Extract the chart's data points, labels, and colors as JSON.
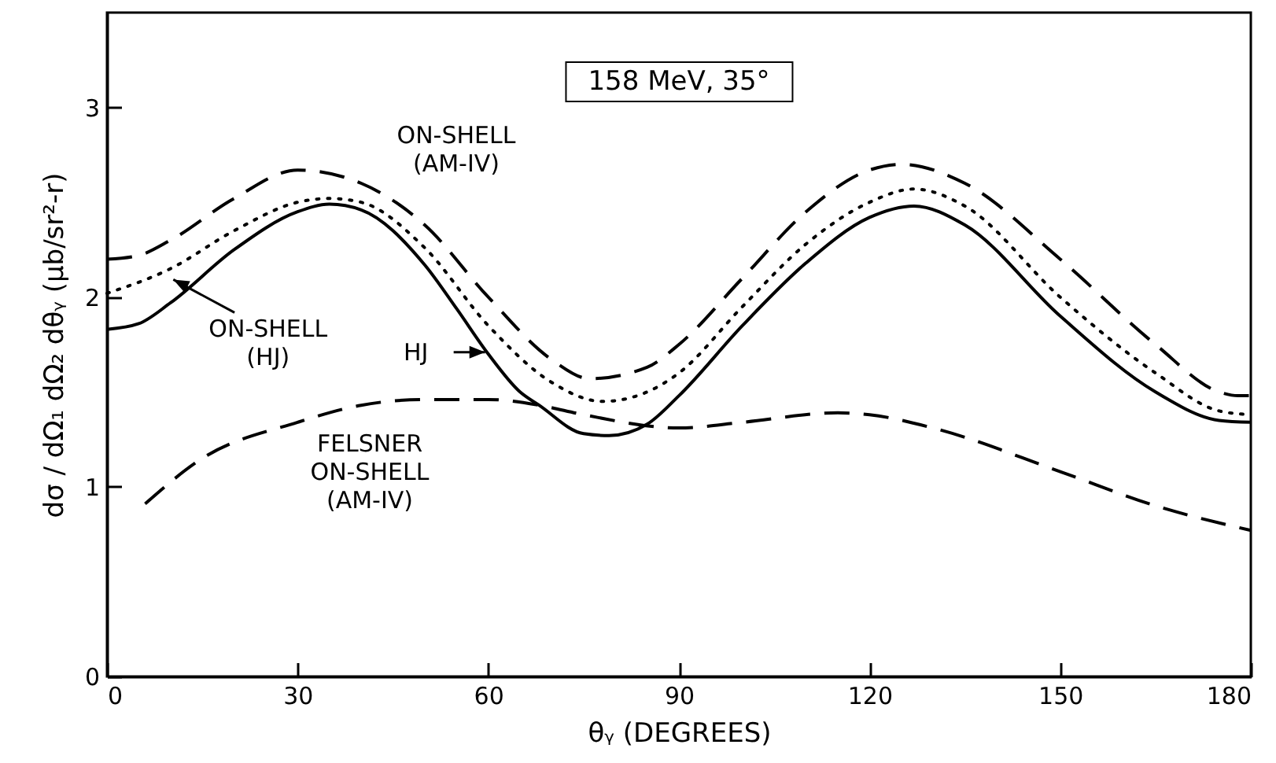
{
  "chart_data": {
    "type": "line",
    "xlabel": "θᵧ (DEGREES)",
    "ylabel": "dσ / dΩ₁ dΩ₂ dθᵧ (μb/sr²-r)",
    "xlim": [
      0,
      180
    ],
    "xticks": [
      0,
      30,
      60,
      90,
      120,
      150,
      180
    ],
    "ylim": [
      0,
      3.5
    ],
    "yticks": [
      0,
      1,
      2,
      3
    ],
    "grid": false,
    "marker": "none",
    "annotations": [
      "158 MeV, 35°",
      "ON-SHELL\n(AM-IV)",
      {
        "text": "ON-SHELL\n(HJ)",
        "x": 10,
        "y": 2.1
      },
      {
        "text": "HJ",
        "x": 60,
        "y": 1.71
      },
      "FELSNER\nON-SHELL\n(AM-IV)"
    ],
    "series": [
      {
        "color": "#000000",
        "line_style": "dashed",
        "x": [
          0,
          5,
          10,
          20,
          30,
          40,
          50,
          60,
          70,
          76,
          85,
          90,
          100,
          110,
          120,
          125,
          135,
          150,
          165,
          175,
          178,
          180
        ],
        "values": [
          2.2,
          2.22,
          2.3,
          2.52,
          2.67,
          2.6,
          2.38,
          2.0,
          1.67,
          1.57,
          1.63,
          1.75,
          2.1,
          2.45,
          2.67,
          2.7,
          2.6,
          2.2,
          1.75,
          1.5,
          1.48,
          1.48
        ]
      },
      {
        "color": "#000000",
        "line_style": "dotted",
        "x": [
          0,
          10,
          20,
          30,
          35,
          40,
          50,
          60,
          70,
          78,
          85,
          90,
          100,
          110,
          120,
          127,
          135,
          150,
          165,
          175,
          180
        ],
        "values": [
          2.02,
          2.15,
          2.35,
          2.5,
          2.52,
          2.5,
          2.26,
          1.85,
          1.55,
          1.45,
          1.5,
          1.6,
          1.95,
          2.28,
          2.5,
          2.57,
          2.48,
          2.0,
          1.6,
          1.4,
          1.38
        ]
      },
      {
        "color": "#000000",
        "line_style": "solid",
        "x": [
          0,
          5,
          10,
          20,
          30,
          35,
          40,
          50,
          55,
          60,
          65,
          68,
          75,
          79,
          85,
          90,
          100,
          110,
          120,
          127,
          135,
          150,
          165,
          175,
          180
        ],
        "values": [
          1.83,
          1.86,
          1.97,
          2.25,
          2.45,
          2.49,
          2.46,
          2.17,
          1.94,
          1.7,
          1.5,
          1.43,
          1.28,
          1.27,
          1.33,
          1.48,
          1.85,
          2.18,
          2.42,
          2.48,
          2.38,
          1.9,
          1.5,
          1.35,
          1.34
        ]
      },
      {
        "color": "#000000",
        "line_style": "dashed",
        "x": [
          6,
          15,
          30,
          40,
          50,
          60,
          68,
          75,
          90,
          100,
          115,
          120,
          130,
          150,
          165,
          180
        ],
        "values": [
          0.91,
          1.15,
          1.34,
          1.43,
          1.46,
          1.46,
          1.43,
          1.38,
          1.31,
          1.34,
          1.39,
          1.38,
          1.31,
          1.08,
          0.9,
          0.77
        ]
      }
    ]
  }
}
